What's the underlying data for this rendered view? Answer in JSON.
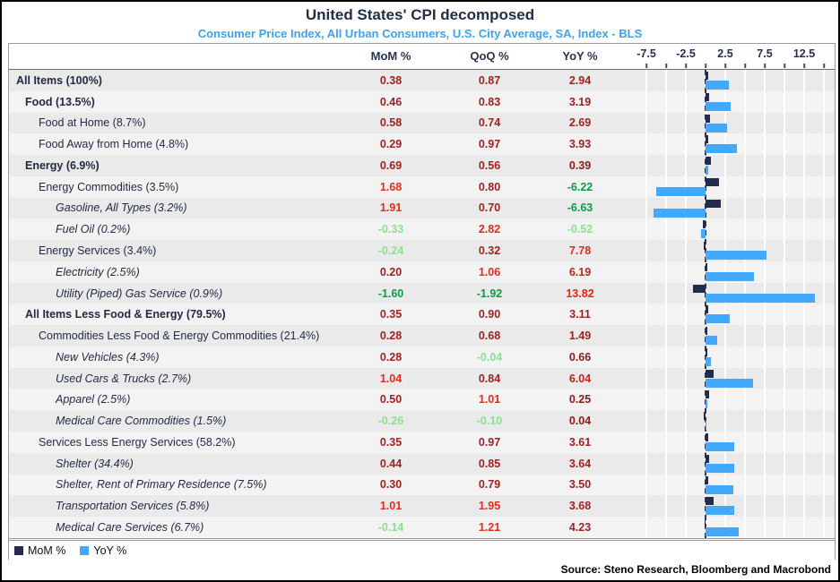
{
  "title": "United States' CPI decomposed",
  "subtitle": "Consumer Price Index, All Urban Consumers, U.S. City Average, SA, Index - BLS",
  "table": {
    "columns": [
      "MoM %",
      "QoQ %",
      "YoY %"
    ]
  },
  "axis": {
    "tick_labels": [
      "-7.5",
      "-2.5",
      "2.5",
      "7.5",
      "12.5"
    ],
    "tick_values": [
      -7.5,
      -2.5,
      2.5,
      7.5,
      12.5
    ],
    "minor_tick_step": 2.5,
    "range": [
      -8.9,
      16.5
    ]
  },
  "legend": {
    "items": [
      {
        "label": "MoM %",
        "color": "#232b4e"
      },
      {
        "label": "YoY %",
        "color": "#42a9fc"
      }
    ]
  },
  "source": "Source: Steno Research, Bloomberg and Macrobond",
  "palette": {
    "mom_bar": "#232b4e",
    "yoy_bar": "#42a9fc",
    "darkest_red": "#8a1a1a",
    "dark_red": "#a32020",
    "medium_red": "#c3241d",
    "bright_red": "#e82a1c",
    "brightest_red": "#f1220f",
    "light_green": "#8ce091",
    "strong_green": "#0c9b45"
  },
  "chart_data": {
    "type": "bar",
    "orientation": "horizontal",
    "plotted_series": [
      "MoM %",
      "YoY %"
    ],
    "table_series": [
      "MoM %",
      "QoQ %",
      "YoY %"
    ],
    "xlim": [
      -8.9,
      16.5
    ],
    "grid": true,
    "legend_position": "bottom-left",
    "rows": [
      {
        "label": "All Items (100%)",
        "indent": 0,
        "style": "bold",
        "mom": "0.38",
        "qoq": "0.87",
        "yoy": "2.94",
        "mom_color": "dark_red",
        "qoq_color": "dark_red",
        "yoy_color": "dark_red"
      },
      {
        "label": "Food (13.5%)",
        "indent": 1,
        "style": "bold",
        "mom": "0.46",
        "qoq": "0.83",
        "yoy": "3.19",
        "mom_color": "dark_red",
        "qoq_color": "dark_red",
        "yoy_color": "dark_red"
      },
      {
        "label": "Food at Home (8.7%)",
        "indent": 2,
        "style": "normal",
        "mom": "0.58",
        "qoq": "0.74",
        "yoy": "2.69",
        "mom_color": "dark_red",
        "qoq_color": "dark_red",
        "yoy_color": "dark_red"
      },
      {
        "label": "Food Away from Home (4.8%)",
        "indent": 2,
        "style": "normal",
        "mom": "0.29",
        "qoq": "0.97",
        "yoy": "3.93",
        "mom_color": "dark_red",
        "qoq_color": "dark_red",
        "yoy_color": "dark_red"
      },
      {
        "label": "Energy (6.9%)",
        "indent": 1,
        "style": "bold",
        "mom": "0.69",
        "qoq": "0.56",
        "yoy": "0.39",
        "mom_color": "dark_red",
        "qoq_color": "dark_red",
        "yoy_color": "darkest_red"
      },
      {
        "label": "Energy Commodities (3.5%)",
        "indent": 2,
        "style": "normal",
        "mom": "1.68",
        "qoq": "0.80",
        "yoy": "-6.22",
        "mom_color": "bright_red",
        "qoq_color": "dark_red",
        "yoy_color": "strong_green"
      },
      {
        "label": "Gasoline, All Types (3.2%)",
        "indent": 3,
        "style": "italic",
        "mom": "1.91",
        "qoq": "0.70",
        "yoy": "-6.63",
        "mom_color": "bright_red",
        "qoq_color": "dark_red",
        "yoy_color": "strong_green"
      },
      {
        "label": "Fuel Oil (0.2%)",
        "indent": 3,
        "style": "italic",
        "mom": "-0.33",
        "qoq": "2.82",
        "yoy": "-0.52",
        "mom_color": "light_green",
        "qoq_color": "bright_red",
        "yoy_color": "light_green"
      },
      {
        "label": "Energy Services (3.4%)",
        "indent": 2,
        "style": "normal",
        "mom": "-0.24",
        "qoq": "0.32",
        "yoy": "7.78",
        "mom_color": "light_green",
        "qoq_color": "dark_red",
        "yoy_color": "bright_red"
      },
      {
        "label": "Electricity (2.5%)",
        "indent": 3,
        "style": "italic",
        "mom": "0.20",
        "qoq": "1.06",
        "yoy": "6.19",
        "mom_color": "dark_red",
        "qoq_color": "bright_red",
        "yoy_color": "medium_red"
      },
      {
        "label": "Utility (Piped) Gas Service (0.9%)",
        "indent": 3,
        "style": "italic",
        "mom": "-1.60",
        "qoq": "-1.92",
        "yoy": "13.82",
        "mom_color": "strong_green",
        "qoq_color": "strong_green",
        "yoy_color": "brightest_red"
      },
      {
        "label": "All Items Less Food & Energy (79.5%)",
        "indent": 1,
        "style": "bold",
        "mom": "0.35",
        "qoq": "0.90",
        "yoy": "3.11",
        "mom_color": "dark_red",
        "qoq_color": "dark_red",
        "yoy_color": "dark_red"
      },
      {
        "label": "Commodities Less Food & Energy Commodities (21.4%)",
        "indent": 2,
        "style": "normal",
        "mom": "0.28",
        "qoq": "0.68",
        "yoy": "1.49",
        "mom_color": "dark_red",
        "qoq_color": "dark_red",
        "yoy_color": "dark_red"
      },
      {
        "label": "New Vehicles (4.3%)",
        "indent": 3,
        "style": "italic",
        "mom": "0.28",
        "qoq": "-0.04",
        "yoy": "0.66",
        "mom_color": "dark_red",
        "qoq_color": "light_green",
        "yoy_color": "darkest_red"
      },
      {
        "label": "Used Cars & Trucks (2.7%)",
        "indent": 3,
        "style": "italic",
        "mom": "1.04",
        "qoq": "0.84",
        "yoy": "6.04",
        "mom_color": "bright_red",
        "qoq_color": "dark_red",
        "yoy_color": "medium_red"
      },
      {
        "label": "Apparel (2.5%)",
        "indent": 3,
        "style": "italic",
        "mom": "0.50",
        "qoq": "1.01",
        "yoy": "0.25",
        "mom_color": "dark_red",
        "qoq_color": "bright_red",
        "yoy_color": "darkest_red"
      },
      {
        "label": "Medical Care Commodities (1.5%)",
        "indent": 3,
        "style": "italic",
        "mom": "-0.26",
        "qoq": "-0.10",
        "yoy": "0.04",
        "mom_color": "light_green",
        "qoq_color": "light_green",
        "yoy_color": "darkest_red"
      },
      {
        "label": "Services Less Energy Services (58.2%)",
        "indent": 2,
        "style": "normal",
        "mom": "0.35",
        "qoq": "0.97",
        "yoy": "3.61",
        "mom_color": "dark_red",
        "qoq_color": "dark_red",
        "yoy_color": "dark_red"
      },
      {
        "label": "Shelter (34.4%)",
        "indent": 3,
        "style": "italic",
        "mom": "0.44",
        "qoq": "0.85",
        "yoy": "3.64",
        "mom_color": "dark_red",
        "qoq_color": "dark_red",
        "yoy_color": "dark_red"
      },
      {
        "label": "Shelter, Rent of Primary Residence (7.5%)",
        "indent": 3,
        "style": "italic",
        "mom": "0.30",
        "qoq": "0.79",
        "yoy": "3.50",
        "mom_color": "dark_red",
        "qoq_color": "dark_red",
        "yoy_color": "dark_red"
      },
      {
        "label": "Transportation Services (5.8%)",
        "indent": 3,
        "style": "italic",
        "mom": "1.01",
        "qoq": "1.95",
        "yoy": "3.68",
        "mom_color": "bright_red",
        "qoq_color": "bright_red",
        "yoy_color": "dark_red"
      },
      {
        "label": "Medical Care Services (6.7%)",
        "indent": 3,
        "style": "italic",
        "mom": "-0.14",
        "qoq": "1.21",
        "yoy": "4.23",
        "mom_color": "light_green",
        "qoq_color": "bright_red",
        "yoy_color": "dark_red"
      }
    ]
  }
}
